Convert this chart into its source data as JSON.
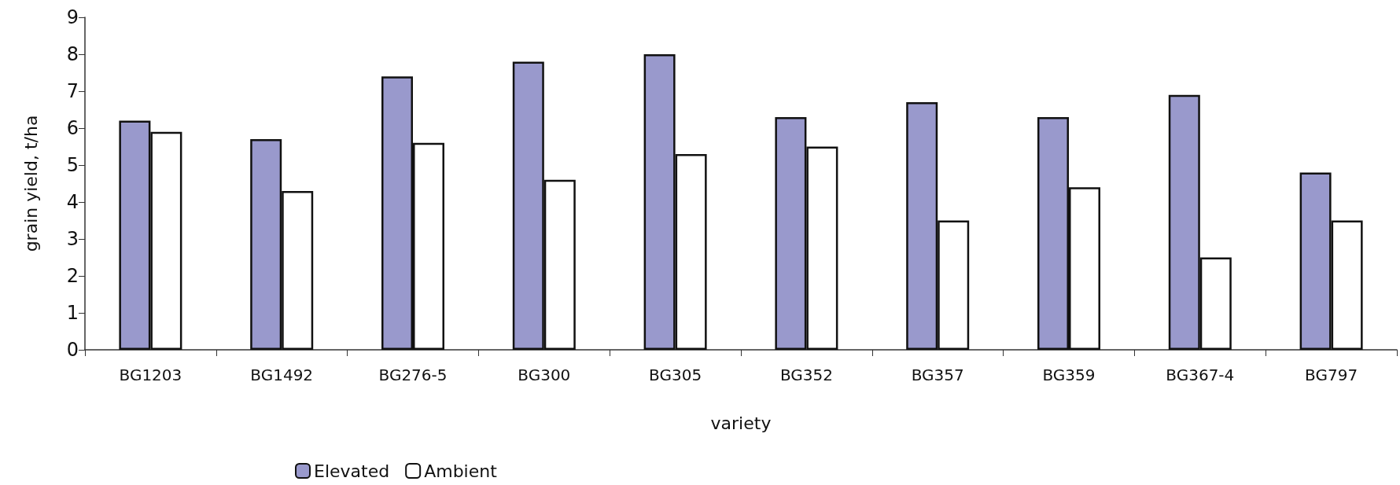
{
  "chart_data": {
    "type": "bar",
    "xlabel": "variety",
    "ylabel": "grain yield, t/ha",
    "categories": [
      "BG1203",
      "BG1492",
      "BG276-5",
      "BG300",
      "BG305",
      "BG352",
      "BG357",
      "BG359",
      "BG367-4",
      "BG797"
    ],
    "series": [
      {
        "name": "Elevated",
        "color": "#9999cc",
        "values": [
          6.2,
          5.7,
          7.4,
          7.8,
          8.0,
          6.3,
          6.7,
          6.3,
          6.9,
          4.8
        ]
      },
      {
        "name": "Ambient",
        "color": "#ffffff",
        "values": [
          5.9,
          4.3,
          5.6,
          4.6,
          5.3,
          5.5,
          3.5,
          4.4,
          2.5,
          3.5
        ]
      }
    ],
    "ylim": [
      0,
      9
    ],
    "yticks": [
      0,
      1,
      2,
      3,
      4,
      5,
      6,
      7,
      8,
      9
    ],
    "grid": false,
    "legend": "bottom"
  }
}
